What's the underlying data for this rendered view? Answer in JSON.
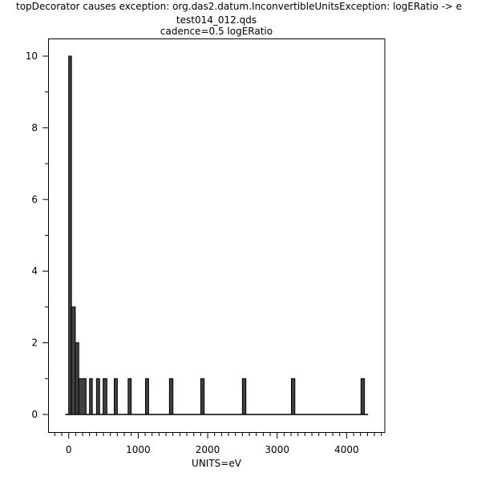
{
  "error_message": "topDecorator causes exception: org.das2.datum.InconvertibleUnitsException: logERatio -> e",
  "chart_data": {
    "type": "bar",
    "title": "test014_012.qds",
    "subtitle": "cadence=0.5 logERatio",
    "xlabel": "UNITS=eV",
    "ylabel": "",
    "xlim": [
      -250,
      4550
    ],
    "ylim": [
      -0.5,
      10.5
    ],
    "grid": false,
    "xticks": [
      0,
      1000,
      2000,
      3000,
      4000
    ],
    "xtick_labels": [
      "0",
      "1000",
      "2000",
      "3000",
      "4000"
    ],
    "yticks": [
      0,
      2,
      4,
      6,
      8,
      10
    ],
    "ytick_labels": [
      "0",
      "2",
      "4",
      "6",
      "8",
      "10"
    ],
    "baseline_range": [
      -50,
      4310
    ],
    "bins": [
      {
        "from": 0,
        "to": 40,
        "count": 10
      },
      {
        "from": 40,
        "to": 95,
        "count": 3
      },
      {
        "from": 95,
        "to": 145,
        "count": 2
      },
      {
        "from": 145,
        "to": 250,
        "count": 1
      },
      {
        "from": 300,
        "to": 340,
        "count": 1
      },
      {
        "from": 400,
        "to": 445,
        "count": 1
      },
      {
        "from": 495,
        "to": 550,
        "count": 1
      },
      {
        "from": 655,
        "to": 700,
        "count": 1
      },
      {
        "from": 855,
        "to": 900,
        "count": 1
      },
      {
        "from": 1105,
        "to": 1150,
        "count": 1
      },
      {
        "from": 1450,
        "to": 1500,
        "count": 1
      },
      {
        "from": 1900,
        "to": 1950,
        "count": 1
      },
      {
        "from": 2500,
        "to": 2550,
        "count": 1
      },
      {
        "from": 3205,
        "to": 3255,
        "count": 1
      },
      {
        "from": 4207,
        "to": 4257,
        "count": 1
      }
    ],
    "bar_color": "#404040"
  }
}
